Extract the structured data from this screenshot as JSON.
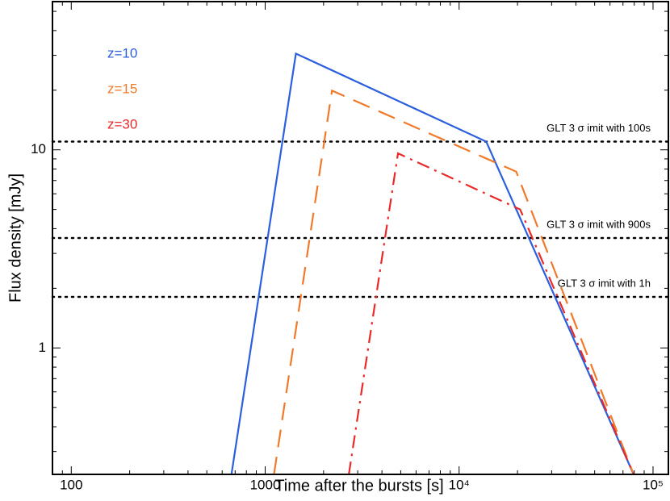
{
  "chart_data": {
    "type": "line",
    "xlabel": "Time after the bursts  [s]",
    "ylabel": "Flux density [mJy]",
    "xscale": "log",
    "yscale": "log",
    "xlim": [
      80,
      120000
    ],
    "ylim": [
      0.23,
      56
    ],
    "xticks": [
      100,
      1000,
      {
        "value": 10000,
        "label": "10⁴"
      },
      {
        "value": 100000,
        "label": "10⁵"
      }
    ],
    "yticks": [
      1,
      10
    ],
    "series": [
      {
        "name": "z=10",
        "color": "#2b5fde",
        "dash": "solid",
        "x": [
          670,
          1440,
          13800,
          79400
        ],
        "values": [
          0.23,
          30.6,
          11.0,
          0.23
        ]
      },
      {
        "name": "z=15",
        "color": "#f07a2a",
        "dash": "dashed",
        "x": [
          1110,
          2210,
          19700,
          79400
        ],
        "values": [
          0.23,
          19.9,
          7.76,
          0.23
        ]
      },
      {
        "name": "z=30",
        "color": "#e82a2a",
        "dash": "dashdot",
        "x": [
          2700,
          4840,
          20650,
          79400
        ],
        "values": [
          0.23,
          9.6,
          5.0,
          0.23
        ]
      }
    ],
    "reference_lines": [
      {
        "label": "GLT 3 σ imit with 100s",
        "value": 11.0
      },
      {
        "label": "GLT 3 σ imit with 900s",
        "value": 3.59
      },
      {
        "label": "GLT 3 σ imit with 1h",
        "value": 1.81
      }
    ]
  }
}
